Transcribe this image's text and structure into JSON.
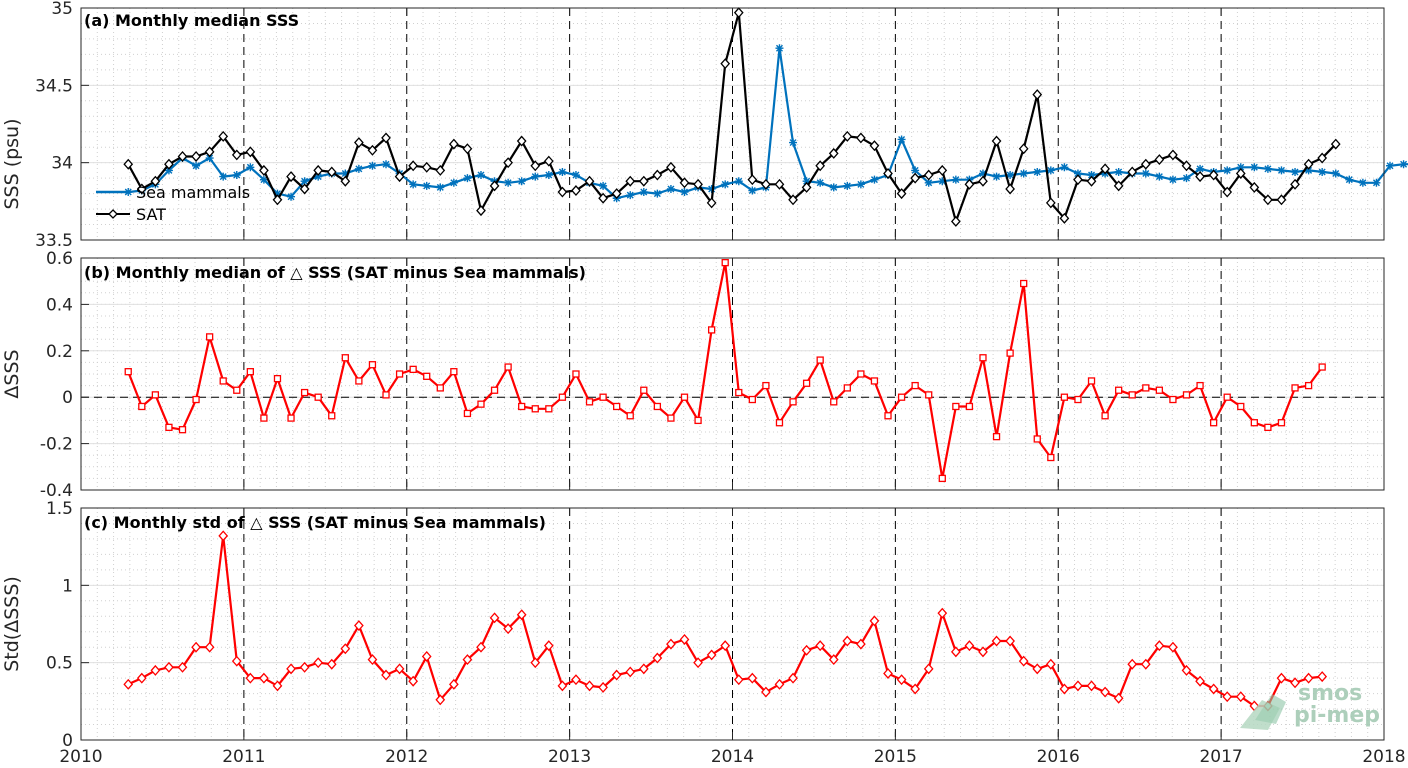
{
  "chart_data": [
    {
      "type": "line",
      "title": "(a) Monthly median SSS",
      "ylabel": "SSS (psu)",
      "xlim": [
        2010,
        2018
      ],
      "ylim": [
        33.5,
        35
      ],
      "yticks": [
        "33.5",
        "34",
        "34.5",
        "35"
      ],
      "x_start": 2010.29,
      "x_step": 0.0833,
      "legend": "upper-left",
      "series": [
        {
          "name": "Sea mammals",
          "color": "#0072bd",
          "marker": "asterisk",
          "values": [
            33.81,
            33.82,
            33.86,
            33.95,
            34.03,
            33.98,
            34.03,
            33.91,
            33.92,
            33.97,
            33.89,
            33.8,
            33.78,
            33.88,
            33.91,
            33.93,
            33.93,
            33.96,
            33.98,
            33.99,
            33.93,
            33.86,
            33.85,
            33.84,
            33.87,
            33.9,
            33.92,
            33.88,
            33.87,
            33.88,
            33.91,
            33.92,
            33.94,
            33.92,
            33.87,
            33.85,
            33.77,
            33.79,
            33.81,
            33.8,
            33.83,
            33.81,
            33.84,
            33.83,
            33.86,
            33.88,
            33.82,
            33.84,
            34.74,
            34.13,
            33.88,
            33.87,
            33.84,
            33.85,
            33.86,
            33.89,
            33.92,
            34.15,
            33.95,
            33.87,
            33.88,
            33.89,
            33.89,
            33.93,
            33.91,
            33.92,
            33.93,
            33.94,
            33.95,
            33.97,
            33.93,
            33.92,
            33.93,
            33.94,
            33.93,
            33.93,
            33.91,
            33.89,
            33.9,
            33.96,
            33.94,
            33.95,
            33.97,
            33.97,
            33.96,
            33.95,
            33.94,
            33.95,
            33.94,
            33.93,
            33.89,
            33.87,
            33.87,
            33.98,
            33.99,
            33.99,
            33.99
          ]
        },
        {
          "name": "SAT",
          "color": "#000000",
          "marker": "diamond",
          "values": [
            33.99,
            33.83,
            33.88,
            33.99,
            34.04,
            34.04,
            34.07,
            34.17,
            34.05,
            34.07,
            33.95,
            33.76,
            33.91,
            33.83,
            33.95,
            33.94,
            33.88,
            34.13,
            34.08,
            34.16,
            33.91,
            33.98,
            33.97,
            33.95,
            34.12,
            34.09,
            33.69,
            33.85,
            34.0,
            34.14,
            33.98,
            34.01,
            33.81,
            33.82,
            33.88,
            33.77,
            33.8,
            33.88,
            33.88,
            33.92,
            33.97,
            33.87,
            33.86,
            33.74,
            34.64,
            34.97,
            33.89,
            33.86,
            33.86,
            33.76,
            33.84,
            33.98,
            34.06,
            34.17,
            34.16,
            34.11,
            33.93,
            33.8,
            33.9,
            33.92,
            33.95,
            33.62,
            33.86,
            33.88,
            34.14,
            33.83,
            34.09,
            34.44,
            33.74,
            33.64,
            33.89,
            33.88,
            33.96,
            33.85,
            33.94,
            33.99,
            34.02,
            34.05,
            33.98,
            33.91,
            33.92,
            33.81,
            33.93,
            33.84,
            33.76,
            33.76,
            33.86,
            33.99,
            34.03,
            34.12
          ]
        }
      ]
    },
    {
      "type": "line",
      "title": "(b) Monthly median of △ SSS (SAT minus Sea mammals)",
      "ylabel": "ΔSSS",
      "xlim": [
        2010,
        2018
      ],
      "ylim": [
        -0.4,
        0.6
      ],
      "yticks": [
        "-0.4",
        "-0.2",
        "0",
        "0.2",
        "0.4",
        "0.6"
      ],
      "x_start": 2010.29,
      "x_step": 0.0833,
      "series": [
        {
          "name": "",
          "color": "#ff0000",
          "marker": "square",
          "values": [
            0.11,
            -0.04,
            0.01,
            -0.13,
            -0.14,
            -0.01,
            0.26,
            0.07,
            0.03,
            0.11,
            -0.09,
            0.08,
            -0.09,
            0.02,
            0.0,
            -0.08,
            0.17,
            0.07,
            0.14,
            0.01,
            0.1,
            0.12,
            0.09,
            0.04,
            0.11,
            -0.07,
            -0.03,
            0.03,
            0.13,
            -0.04,
            -0.05,
            -0.05,
            0.0,
            0.1,
            -0.02,
            0.0,
            -0.04,
            -0.08,
            0.03,
            -0.04,
            -0.09,
            0.0,
            -0.1,
            0.29,
            0.58,
            0.02,
            -0.01,
            0.05,
            -0.11,
            -0.02,
            0.06,
            0.16,
            -0.02,
            0.04,
            0.1,
            0.07,
            -0.08,
            0.0,
            0.05,
            0.01,
            -0.35,
            -0.04,
            -0.04,
            0.17,
            -0.17,
            0.19,
            0.49,
            -0.18,
            -0.26,
            0.0,
            -0.01,
            0.07,
            -0.08,
            0.03,
            0.01,
            0.04,
            0.03,
            -0.01,
            0.01,
            0.05,
            -0.11,
            0.0,
            -0.04,
            -0.11,
            -0.13,
            -0.11,
            0.04,
            0.05,
            0.13
          ]
        }
      ]
    },
    {
      "type": "line",
      "title": "(c) Monthly std of △ SSS (SAT minus Sea mammals)",
      "ylabel": "Std(ΔSSS)",
      "xlim": [
        2010,
        2018
      ],
      "ylim": [
        0,
        1.5
      ],
      "yticks": [
        "0",
        "0.5",
        "1",
        "1.5"
      ],
      "xticks": [
        "2010",
        "2011",
        "2012",
        "2013",
        "2014",
        "2015",
        "2016",
        "2017",
        "2018"
      ],
      "x_start": 2010.29,
      "x_step": 0.0833,
      "series": [
        {
          "name": "",
          "color": "#ff0000",
          "marker": "diamond",
          "values": [
            0.36,
            0.4,
            0.45,
            0.47,
            0.47,
            0.6,
            0.6,
            1.32,
            0.51,
            0.4,
            0.4,
            0.35,
            0.46,
            0.47,
            0.5,
            0.49,
            0.59,
            0.74,
            0.52,
            0.42,
            0.46,
            0.38,
            0.54,
            0.26,
            0.36,
            0.52,
            0.6,
            0.79,
            0.72,
            0.81,
            0.5,
            0.61,
            0.35,
            0.39,
            0.35,
            0.34,
            0.42,
            0.44,
            0.46,
            0.53,
            0.62,
            0.65,
            0.5,
            0.55,
            0.61,
            0.39,
            0.4,
            0.31,
            0.36,
            0.4,
            0.58,
            0.61,
            0.52,
            0.64,
            0.62,
            0.77,
            0.43,
            0.39,
            0.33,
            0.46,
            0.82,
            0.57,
            0.61,
            0.57,
            0.64,
            0.64,
            0.51,
            0.46,
            0.49,
            0.33,
            0.35,
            0.35,
            0.31,
            0.27,
            0.49,
            0.49,
            0.61,
            0.6,
            0.45,
            0.38,
            0.33,
            0.28,
            0.28,
            0.22,
            0.22,
            0.4,
            0.37,
            0.4,
            0.41
          ]
        }
      ]
    }
  ],
  "legend": {
    "sea_mammals": "Sea mammals",
    "sat": "SAT"
  },
  "watermark": {
    "line1": "smos",
    "line2": "pi-mep"
  }
}
